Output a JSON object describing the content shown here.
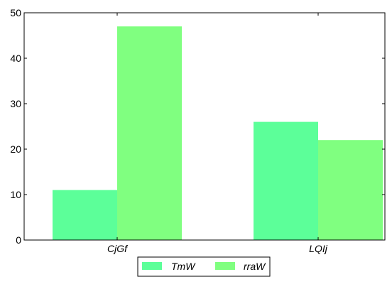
{
  "chart_data": {
    "type": "bar",
    "categories": [
      "CjGf",
      "LQIj"
    ],
    "series": [
      {
        "name": "TmW",
        "values": [
          11,
          26
        ],
        "color": "#5cff99"
      },
      {
        "name": "rraW",
        "values": [
          47,
          22
        ],
        "color": "#80ff80"
      }
    ],
    "title": "",
    "xlabel": "",
    "ylabel": "",
    "ylim": [
      0,
      50
    ],
    "yticks": [
      "0",
      "10",
      "20",
      "30",
      "40",
      "50"
    ],
    "grid": false,
    "legend_placement": "bottom-center"
  }
}
